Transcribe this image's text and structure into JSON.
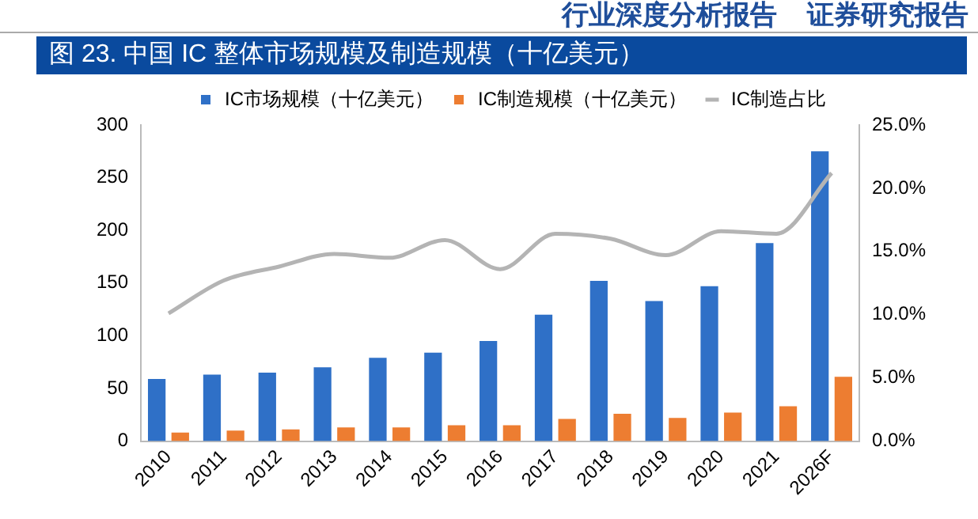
{
  "chart_data": {
    "type": "bar",
    "title": "图 23. 中国 IC 整体市场规模及制造规模（十亿美元）",
    "annotations": [
      "行业深度分析报告    证券研究报告"
    ],
    "categories": [
      "2010",
      "2011",
      "2012",
      "2013",
      "2014",
      "2015",
      "2016",
      "2017",
      "2018",
      "2019",
      "2020",
      "2021",
      "2026F"
    ],
    "series": [
      {
        "name": "IC市场规模（十亿美元）",
        "color": "#2f70c7",
        "values": [
          59,
          63,
          65,
          70,
          79,
          84,
          95,
          120,
          152,
          133,
          147,
          188,
          275
        ]
      },
      {
        "name": "IC制造规模（十亿美元）",
        "color": "#ed7d31",
        "values": [
          8,
          10,
          11,
          13,
          13,
          15,
          15,
          21,
          26,
          22,
          27,
          33,
          61
        ]
      },
      {
        "name": "IC制造占比",
        "type": "line",
        "axis": "y2",
        "color": "#b4b4b4",
        "values": [
          10.1,
          12.7,
          13.8,
          14.8,
          14.5,
          15.9,
          13.6,
          16.4,
          16.0,
          14.7,
          16.6,
          16.4,
          21.2
        ]
      }
    ],
    "ylim": [
      0,
      300
    ],
    "yticks": [
      0,
      50,
      100,
      150,
      200,
      250,
      300
    ],
    "y2lim": [
      0,
      25
    ],
    "y2ticks": [
      {
        "value": 0,
        "label": "0.0%"
      },
      {
        "value": 5,
        "label": "5.0%"
      },
      {
        "value": 10,
        "label": "10.0%"
      },
      {
        "value": 15,
        "label": "15.0%"
      },
      {
        "value": 20,
        "label": "20.0%"
      },
      {
        "value": 25,
        "label": "25.0%"
      }
    ],
    "grid": false,
    "legend": "top",
    "marker": "none"
  }
}
